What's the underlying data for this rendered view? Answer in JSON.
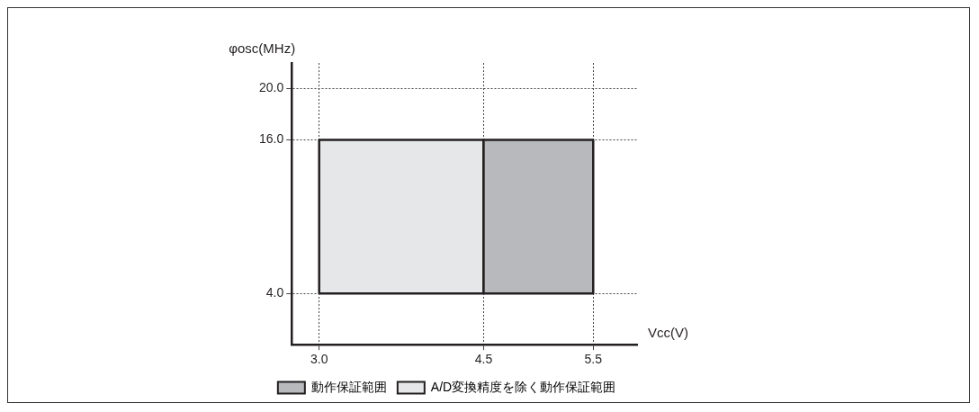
{
  "chart_data": {
    "type": "area",
    "xlabel": "Vcc(V)",
    "ylabel": "φosc(MHz)",
    "series": [
      {
        "name": "動作保証範囲",
        "color": "#b8b9bc",
        "x": [
          4.5,
          4.5,
          5.5,
          5.5,
          4.5
        ],
        "values": [
          4,
          16,
          16,
          4,
          4
        ]
      },
      {
        "name": "A/D変換精度を除く動作保証範囲",
        "color": "#e6e7e9",
        "x": [
          3.0,
          3.0,
          4.5,
          4.5,
          3.0
        ],
        "values": [
          4,
          16,
          16,
          4,
          4
        ]
      }
    ],
    "xlim": [
      2.75,
      5.9
    ],
    "xticks": [
      {
        "value": 3.0,
        "label": "3.0"
      },
      {
        "value": 4.5,
        "label": "4.5"
      },
      {
        "value": 5.5,
        "label": "5.5"
      }
    ],
    "ylim": [
      0,
      22
    ],
    "yticks": [
      {
        "value": 4,
        "label": "4.0"
      },
      {
        "value": 16,
        "label": "16.0"
      },
      {
        "value": 20,
        "label": "20.0"
      }
    ],
    "grid": true,
    "line_style": "dotted",
    "legend": "bottom"
  }
}
